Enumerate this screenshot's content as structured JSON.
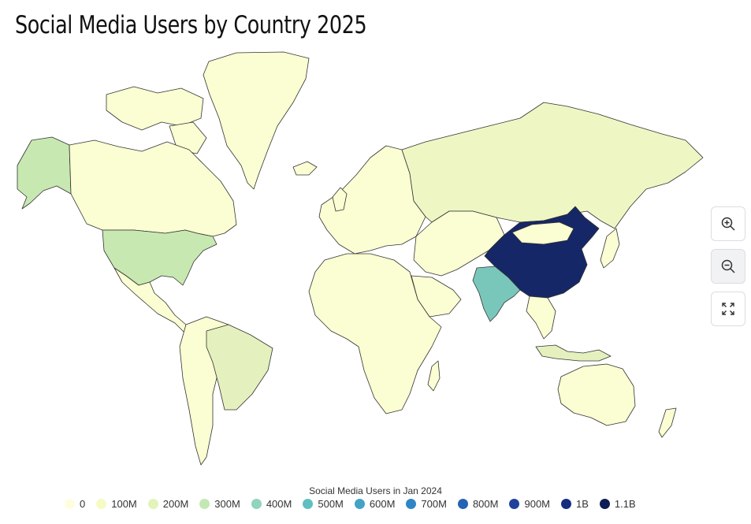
{
  "title": "Social Media Users by Country 2025",
  "legend": {
    "title": "Social Media Users in Jan 2024",
    "items": [
      {
        "label": "0",
        "color": "#fffde0"
      },
      {
        "label": "100M",
        "color": "#f6fbc6"
      },
      {
        "label": "200M",
        "color": "#e2f4b8"
      },
      {
        "label": "300M",
        "color": "#c3e8b4"
      },
      {
        "label": "400M",
        "color": "#8fd4bb"
      },
      {
        "label": "500M",
        "color": "#5fbfc0"
      },
      {
        "label": "600M",
        "color": "#42a3c5"
      },
      {
        "label": "700M",
        "color": "#2f86c6"
      },
      {
        "label": "800M",
        "color": "#2563b3"
      },
      {
        "label": "900M",
        "color": "#21419b"
      },
      {
        "label": "1B",
        "color": "#172d7f"
      },
      {
        "label": "1.1B",
        "color": "#0e1d55"
      }
    ]
  },
  "regions": [
    {
      "name": "China",
      "value_band": "1.1B",
      "color": "#152766"
    },
    {
      "name": "India",
      "value_band": "500M",
      "color": "#79c7bb"
    },
    {
      "name": "United States",
      "value_band": "300M",
      "color": "#c8e8b1"
    },
    {
      "name": "Alaska",
      "value_band": "300M",
      "color": "#c8e8b1"
    },
    {
      "name": "Brazil",
      "value_band": "200M",
      "color": "#e4f1be"
    },
    {
      "name": "Russia",
      "value_band": "100M",
      "color": "#eef7c4"
    },
    {
      "name": "Indonesia",
      "value_band": "200M",
      "color": "#e4f1be"
    },
    {
      "name": "Other",
      "value_band": "0",
      "color": "#fbfdd2"
    }
  ],
  "controls": {
    "zoom_in": "zoom-in-icon",
    "zoom_out": "zoom-out-icon",
    "fullscreen": "fullscreen-icon"
  },
  "colors": {
    "border": "#333333",
    "background": "#ffffff"
  }
}
